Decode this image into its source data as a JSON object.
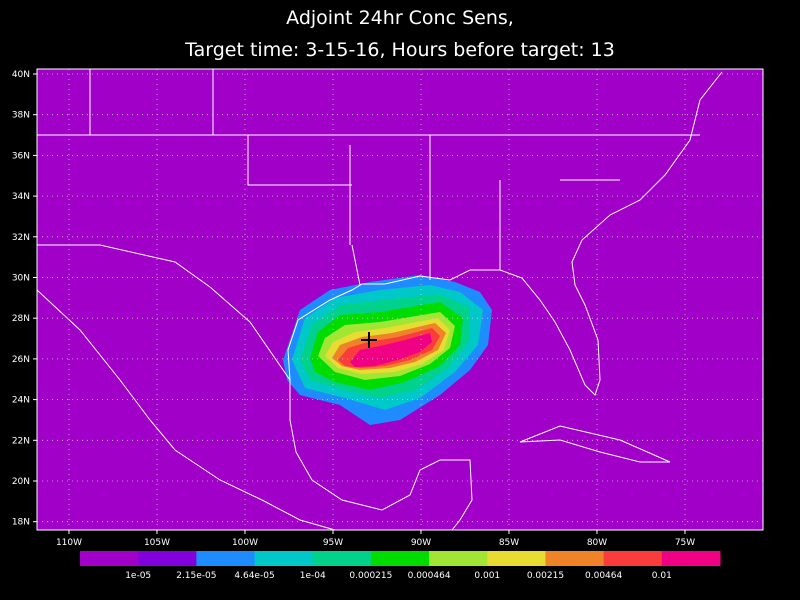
{
  "title": "Adjoint 24hr Conc Sens,",
  "subtitle": "Target time: 3-15-16, Hours before target: 13",
  "lat_labels": [
    "40N",
    "38N",
    "36N",
    "34N",
    "32N",
    "30N",
    "28N",
    "26N",
    "24N",
    "22N",
    "20N",
    "18N"
  ],
  "lon_labels": [
    "110W",
    "105W",
    "100W",
    "95W",
    "90W",
    "85W",
    "80W",
    "75W"
  ],
  "colorbar": {
    "labels": [
      "1e-05",
      "2.15e-05",
      "4.64e-05",
      "1e-04",
      "0.000215",
      "0.000464",
      "0.001",
      "0.00215",
      "0.00464",
      "0.01"
    ],
    "colors": [
      "#a000c8",
      "#8200dc",
      "#1e8cff",
      "#00c8c8",
      "#00d28c",
      "#00dc00",
      "#a0e632",
      "#e6dc32",
      "#f08228",
      "#fa3c3c",
      "#f00082"
    ]
  }
}
